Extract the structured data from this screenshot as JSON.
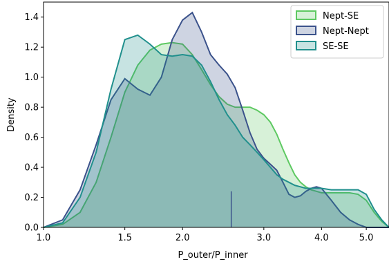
{
  "chart_data": {
    "type": "area",
    "xlabel": "P_outer/P_inner",
    "ylabel": "Density",
    "xscale": "log",
    "xlim": [
      1.0,
      5.6
    ],
    "ylim": [
      0,
      1.5
    ],
    "xticks": [
      1.0,
      1.5,
      2.0,
      3.0,
      4.0,
      5.0
    ],
    "xtick_labels": [
      "1.0",
      "1.5",
      "2.0",
      "3.0",
      "4.0",
      "5.0"
    ],
    "yticks": [
      0.0,
      0.2,
      0.4,
      0.6,
      0.8,
      1.0,
      1.2,
      1.4
    ],
    "ytick_labels": [
      "0.0",
      "0.2",
      "0.4",
      "0.6",
      "0.8",
      "1.0",
      "1.2",
      "1.4"
    ],
    "grid": false,
    "legend_position": "top-right",
    "marker_line": {
      "x": 2.55,
      "y": 0.24,
      "color": "#3b528b"
    },
    "series": [
      {
        "name": "Nept-SE",
        "line_color": "#5ec962",
        "fill_color": "#5ec962",
        "x": [
          1.0,
          1.1,
          1.2,
          1.3,
          1.4,
          1.5,
          1.6,
          1.7,
          1.8,
          1.9,
          2.0,
          2.1,
          2.2,
          2.3,
          2.4,
          2.5,
          2.6,
          2.7,
          2.8,
          2.9,
          3.0,
          3.1,
          3.2,
          3.3,
          3.4,
          3.5,
          3.6,
          3.7,
          3.8,
          3.9,
          4.0,
          4.2,
          4.4,
          4.6,
          4.8,
          5.0,
          5.2,
          5.4,
          5.6
        ],
        "y": [
          0.0,
          0.02,
          0.1,
          0.3,
          0.6,
          0.9,
          1.08,
          1.18,
          1.22,
          1.23,
          1.22,
          1.15,
          1.05,
          0.95,
          0.87,
          0.82,
          0.8,
          0.8,
          0.8,
          0.78,
          0.75,
          0.7,
          0.62,
          0.52,
          0.43,
          0.35,
          0.3,
          0.27,
          0.25,
          0.24,
          0.23,
          0.23,
          0.23,
          0.23,
          0.22,
          0.18,
          0.1,
          0.04,
          0.0
        ]
      },
      {
        "name": "Nept-Nept",
        "line_color": "#3b528b",
        "fill_color": "#3b528b",
        "x": [
          1.0,
          1.1,
          1.2,
          1.3,
          1.4,
          1.5,
          1.6,
          1.7,
          1.8,
          1.9,
          2.0,
          2.1,
          2.2,
          2.3,
          2.4,
          2.5,
          2.6,
          2.7,
          2.8,
          2.9,
          3.0,
          3.1,
          3.2,
          3.3,
          3.4,
          3.5,
          3.6,
          3.7,
          3.8,
          3.9,
          4.0,
          4.2,
          4.4,
          4.6,
          4.8,
          5.0,
          5.2,
          5.4,
          5.6
        ],
        "y": [
          0.0,
          0.05,
          0.25,
          0.55,
          0.85,
          0.99,
          0.92,
          0.88,
          1.0,
          1.25,
          1.38,
          1.43,
          1.3,
          1.15,
          1.08,
          1.02,
          0.93,
          0.78,
          0.63,
          0.52,
          0.46,
          0.42,
          0.38,
          0.3,
          0.22,
          0.2,
          0.21,
          0.24,
          0.26,
          0.27,
          0.26,
          0.18,
          0.1,
          0.05,
          0.02,
          0.0,
          0.0,
          0.0,
          0.0
        ]
      },
      {
        "name": "SE-SE",
        "line_color": "#21908d",
        "fill_color": "#21908d",
        "x": [
          1.0,
          1.1,
          1.2,
          1.3,
          1.4,
          1.5,
          1.6,
          1.7,
          1.8,
          1.9,
          2.0,
          2.1,
          2.2,
          2.3,
          2.4,
          2.5,
          2.6,
          2.7,
          2.8,
          2.9,
          3.0,
          3.1,
          3.2,
          3.3,
          3.4,
          3.5,
          3.6,
          3.7,
          3.8,
          3.9,
          4.0,
          4.2,
          4.4,
          4.6,
          4.8,
          5.0,
          5.2,
          5.4,
          5.6
        ],
        "y": [
          0.0,
          0.03,
          0.2,
          0.5,
          0.92,
          1.25,
          1.28,
          1.22,
          1.15,
          1.14,
          1.15,
          1.14,
          1.08,
          0.97,
          0.85,
          0.75,
          0.68,
          0.6,
          0.55,
          0.5,
          0.45,
          0.4,
          0.35,
          0.32,
          0.3,
          0.28,
          0.27,
          0.26,
          0.26,
          0.26,
          0.26,
          0.25,
          0.25,
          0.25,
          0.25,
          0.22,
          0.12,
          0.05,
          0.0
        ]
      }
    ]
  }
}
